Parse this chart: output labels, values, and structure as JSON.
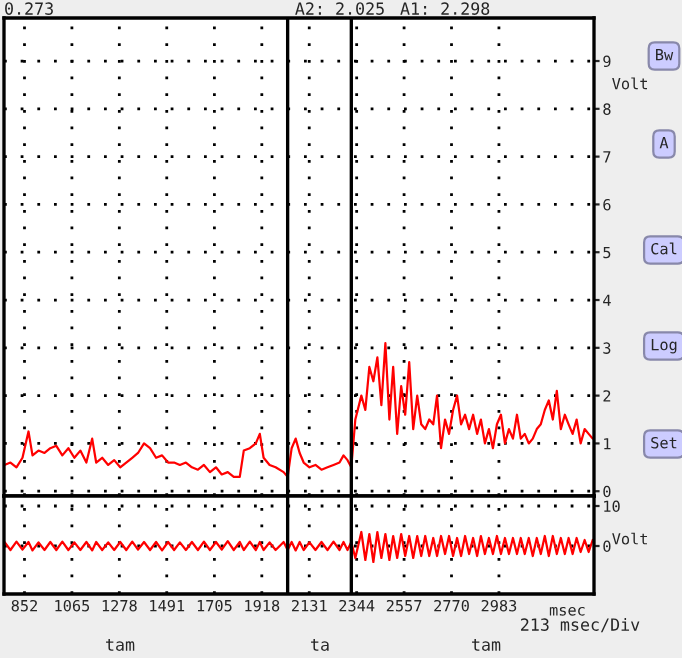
{
  "chart_data": [
    {
      "type": "line",
      "ylabel": "Volt",
      "xlim": [
        760,
        3410
      ],
      "ylim": [
        -0.1,
        9.9
      ],
      "yticks": [
        0,
        1,
        2,
        3,
        4,
        5,
        6,
        7,
        8,
        9
      ],
      "tick_labels": "y",
      "grid": true,
      "line_style": "solid",
      "marker": "none",
      "annotations": [
        "0.273",
        "A2: 2.025",
        "A1: 2.298",
        "Bw",
        "A",
        "Cal",
        "Log",
        "Set"
      ],
      "ref_lines": [
        {
          "axis": "x",
          "value": 2034,
          "color": "#000000"
        },
        {
          "axis": "x",
          "value": 2320,
          "color": "#000000"
        }
      ],
      "x": [
        762,
        789,
        816,
        843,
        870,
        888,
        915,
        942,
        968,
        995,
        1022,
        1049,
        1076,
        1103,
        1130,
        1156,
        1174,
        1201,
        1228,
        1255,
        1282,
        1309,
        1336,
        1362,
        1389,
        1416,
        1443,
        1470,
        1497,
        1524,
        1550,
        1577,
        1604,
        1631,
        1658,
        1685,
        1712,
        1738,
        1765,
        1792,
        1819,
        1837,
        1864,
        1891,
        1909,
        1926,
        1953,
        1980,
        2016,
        2034,
        2052,
        2070,
        2088,
        2106,
        2132,
        2159,
        2186,
        2213,
        2240,
        2267,
        2285,
        2303,
        2320,
        2338,
        2365,
        2383,
        2401,
        2419,
        2437,
        2455,
        2473,
        2491,
        2508,
        2526,
        2544,
        2562,
        2580,
        2598,
        2616,
        2634,
        2652,
        2670,
        2688,
        2705,
        2723,
        2741,
        2759,
        2777,
        2795,
        2813,
        2831,
        2849,
        2867,
        2885,
        2902,
        2920,
        2938,
        2956,
        2974,
        2992,
        3010,
        3028,
        3046,
        3064,
        3081,
        3099,
        3117,
        3135,
        3153,
        3171,
        3189,
        3207,
        3225,
        3243,
        3261,
        3279,
        3296,
        3314,
        3332,
        3350,
        3368,
        3386,
        3404
      ],
      "series": [
        {
          "color": "#ff0000",
          "values": [
            0.55,
            0.6,
            0.5,
            0.7,
            1.25,
            0.75,
            0.85,
            0.8,
            0.9,
            0.95,
            0.75,
            0.9,
            0.7,
            0.85,
            0.6,
            1.1,
            0.6,
            0.7,
            0.55,
            0.65,
            0.5,
            0.6,
            0.7,
            0.8,
            1.0,
            0.9,
            0.7,
            0.75,
            0.6,
            0.6,
            0.55,
            0.6,
            0.5,
            0.45,
            0.55,
            0.4,
            0.5,
            0.35,
            0.4,
            0.3,
            0.3,
            0.85,
            0.9,
            1.0,
            1.2,
            0.7,
            0.55,
            0.5,
            0.4,
            0.3,
            0.9,
            1.1,
            0.8,
            0.6,
            0.5,
            0.55,
            0.45,
            0.5,
            0.55,
            0.6,
            0.75,
            0.65,
            0.5,
            1.5,
            2.0,
            1.7,
            2.6,
            2.3,
            2.8,
            1.8,
            3.1,
            1.5,
            2.6,
            1.2,
            2.2,
            1.6,
            2.7,
            1.3,
            2.0,
            1.4,
            1.3,
            1.5,
            1.4,
            2.0,
            0.9,
            1.5,
            1.2,
            1.7,
            2.0,
            1.4,
            1.6,
            1.3,
            1.6,
            1.2,
            1.5,
            1.0,
            1.3,
            0.9,
            1.4,
            1.6,
            1.0,
            1.3,
            1.1,
            1.6,
            1.1,
            1.2,
            1.0,
            1.1,
            1.3,
            1.4,
            1.7,
            1.9,
            1.5,
            2.1,
            1.3,
            1.6,
            1.4,
            1.2,
            1.5,
            1.0,
            1.3,
            1.2,
            1.1
          ]
        }
      ]
    },
    {
      "type": "line",
      "ylabel": "Volt",
      "xlabel": "msec",
      "xlim": [
        760,
        3410
      ],
      "ylim": [
        -12,
        12.5
      ],
      "yticks": [
        0,
        10
      ],
      "xticks": [
        852,
        1065,
        1278,
        1491,
        1705,
        1918,
        2131,
        2344,
        2557,
        2770,
        2983
      ],
      "grid": true,
      "line_style": "solid",
      "marker": "none",
      "annotations": [
        "213 msec/Div",
        "tam",
        "ta",
        "tam"
      ],
      "ref_lines": [
        {
          "axis": "x",
          "value": 2034,
          "color": "#000000"
        },
        {
          "axis": "x",
          "value": 2320,
          "color": "#000000"
        }
      ],
      "x": [
        762,
        789,
        816,
        843,
        870,
        888,
        915,
        942,
        968,
        995,
        1022,
        1049,
        1076,
        1103,
        1130,
        1156,
        1174,
        1201,
        1228,
        1255,
        1282,
        1309,
        1336,
        1362,
        1389,
        1416,
        1443,
        1470,
        1497,
        1524,
        1550,
        1577,
        1604,
        1631,
        1658,
        1685,
        1712,
        1738,
        1765,
        1792,
        1819,
        1837,
        1864,
        1891,
        1909,
        1926,
        1953,
        1980,
        2016,
        2034,
        2052,
        2070,
        2088,
        2106,
        2132,
        2159,
        2186,
        2213,
        2240,
        2267,
        2285,
        2303,
        2320,
        2338,
        2365,
        2383,
        2401,
        2419,
        2437,
        2455,
        2473,
        2491,
        2508,
        2526,
        2544,
        2562,
        2580,
        2598,
        2616,
        2634,
        2652,
        2670,
        2688,
        2705,
        2723,
        2741,
        2759,
        2777,
        2795,
        2813,
        2831,
        2849,
        2867,
        2885,
        2902,
        2920,
        2938,
        2956,
        2974,
        2992,
        3010,
        3028,
        3046,
        3064,
        3081,
        3099,
        3117,
        3135,
        3153,
        3171,
        3189,
        3207,
        3225,
        3243,
        3261,
        3279,
        3296,
        3314,
        3332,
        3350,
        3368,
        3386,
        3404
      ],
      "series": [
        {
          "color": "#ff0000",
          "values": [
            1.0,
            -1.0,
            1.1,
            -0.9,
            1.0,
            -1.1,
            0.9,
            -1.0,
            1.0,
            -1.0,
            1.1,
            -1.0,
            0.9,
            -1.0,
            1.0,
            -1.1,
            1.0,
            -1.0,
            0.9,
            -1.0,
            1.0,
            -1.0,
            1.1,
            -0.9,
            1.0,
            -1.0,
            1.0,
            -1.1,
            1.0,
            -1.0,
            0.9,
            -1.0,
            1.0,
            -1.0,
            1.1,
            -1.0,
            1.0,
            -0.9,
            1.2,
            -1.0,
            1.0,
            -1.0,
            1.1,
            -1.0,
            1.0,
            -1.0,
            0.9,
            -1.0,
            1.0,
            -1.0,
            1.0,
            -1.1,
            1.0,
            -1.0,
            0.9,
            -1.0,
            1.0,
            -1.0,
            1.1,
            -1.0,
            1.0,
            -1.0,
            1.0,
            -3.0,
            3.5,
            -3.5,
            3.0,
            -4.0,
            3.5,
            -3.0,
            3.0,
            -3.5,
            2.5,
            -3.0,
            3.0,
            -2.5,
            2.5,
            -3.0,
            2.5,
            -2.5,
            2.5,
            -2.5,
            2.0,
            -2.5,
            2.5,
            -2.0,
            2.5,
            -2.5,
            2.0,
            -2.5,
            2.5,
            -2.0,
            2.0,
            -2.5,
            2.5,
            -2.0,
            2.0,
            -2.0,
            2.5,
            -2.0,
            2.0,
            -2.0,
            2.0,
            -2.0,
            2.0,
            -2.0,
            2.0,
            -2.5,
            2.0,
            -2.0,
            2.5,
            -2.5,
            2.5,
            -2.0,
            2.0,
            -2.0,
            2.0,
            -2.0,
            2.0,
            -1.5,
            1.5,
            -1.5,
            1.5
          ]
        }
      ]
    }
  ]
}
